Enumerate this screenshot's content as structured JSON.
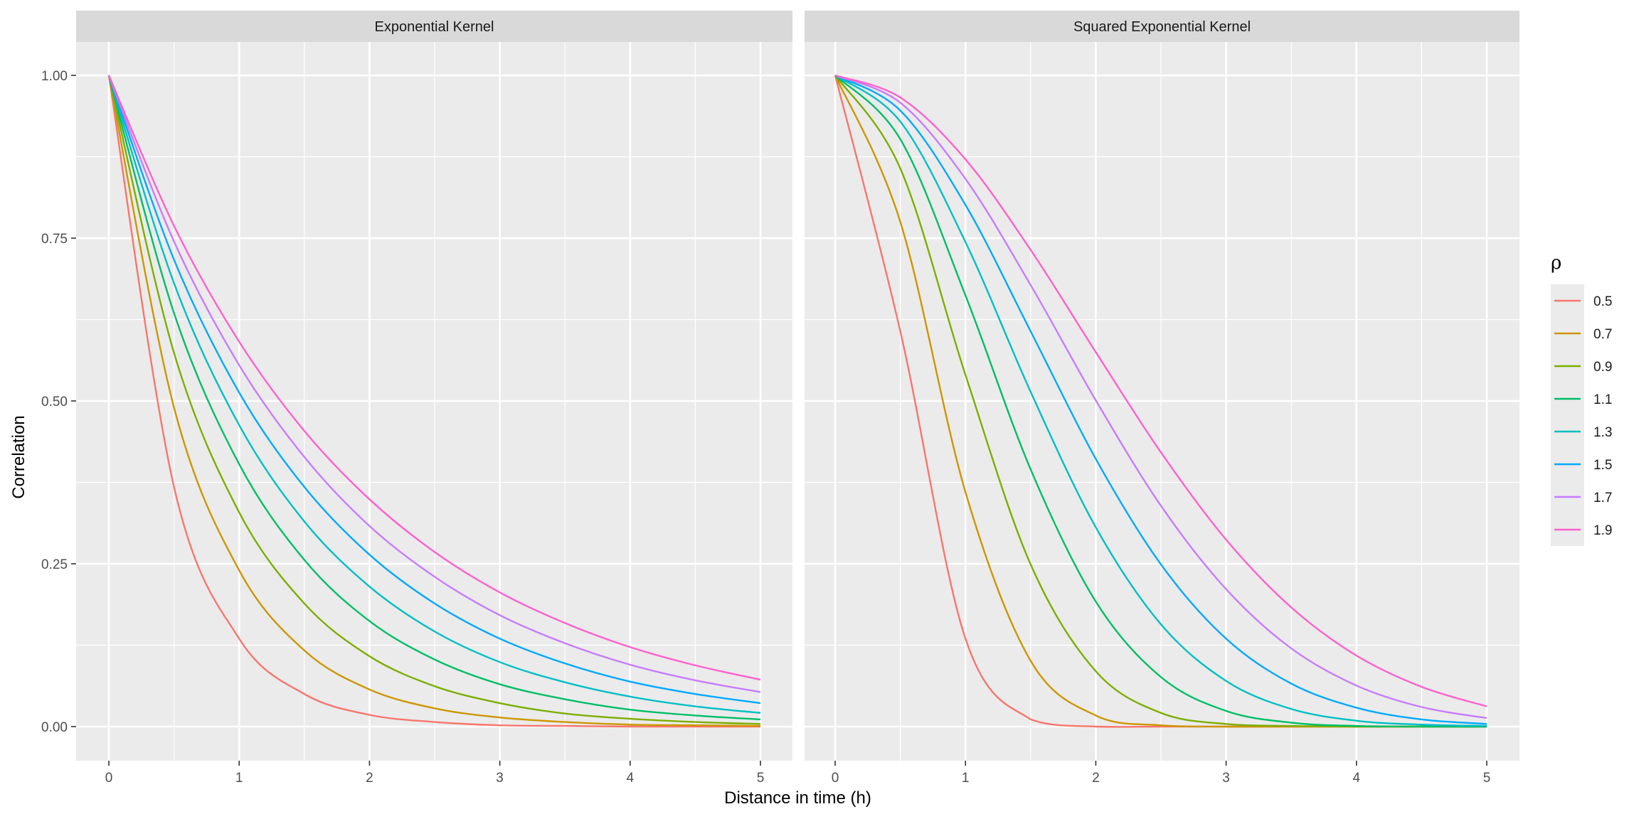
{
  "chart_data": {
    "type": "line",
    "xlabel": "Distance in time (h)",
    "ylabel": "Correlation",
    "xlim": [
      0,
      5
    ],
    "ylim": [
      0,
      1
    ],
    "x_ticks": [
      "0",
      "1",
      "2",
      "3",
      "4",
      "5"
    ],
    "y_ticks": [
      "0.00",
      "0.25",
      "0.50",
      "0.75",
      "1.00"
    ],
    "grid": true,
    "legend": {
      "title": "ρ",
      "placement": "right",
      "entries": [
        "0.5",
        "0.7",
        "0.9",
        "1.1",
        "1.3",
        "1.5",
        "1.7",
        "1.9"
      ],
      "colors": [
        "#F8766D",
        "#CD9600",
        "#7CAE00",
        "#00BE67",
        "#00BFC4",
        "#00A9FF",
        "#C77CFF",
        "#FF61CC"
      ]
    },
    "x": [
      0,
      0.5,
      1,
      1.5,
      2,
      2.5,
      3,
      3.5,
      4,
      4.5,
      5
    ],
    "panels": [
      {
        "title": "Exponential Kernel",
        "series": [
          {
            "name": "0.5",
            "values": [
              1,
              0.368,
              0.135,
              0.05,
              0.018,
              0.007,
              0.002,
              0.001,
              0.0,
              0.0,
              0.0
            ]
          },
          {
            "name": "0.7",
            "values": [
              1,
              0.49,
              0.24,
              0.117,
              0.057,
              0.028,
              0.014,
              0.007,
              0.003,
              0.002,
              0.001
            ]
          },
          {
            "name": "0.9",
            "values": [
              1,
              0.574,
              0.329,
              0.189,
              0.108,
              0.062,
              0.036,
              0.02,
              0.012,
              0.007,
              0.004
            ]
          },
          {
            "name": "1.1",
            "values": [
              1,
              0.635,
              0.403,
              0.256,
              0.162,
              0.103,
              0.065,
              0.042,
              0.026,
              0.017,
              0.011
            ]
          },
          {
            "name": "1.3",
            "values": [
              1,
              0.681,
              0.463,
              0.315,
              0.215,
              0.146,
              0.099,
              0.068,
              0.046,
              0.031,
              0.021
            ]
          },
          {
            "name": "1.5",
            "values": [
              1,
              0.717,
              0.513,
              0.368,
              0.264,
              0.189,
              0.135,
              0.097,
              0.069,
              0.05,
              0.036
            ]
          },
          {
            "name": "1.7",
            "values": [
              1,
              0.745,
              0.555,
              0.414,
              0.308,
              0.23,
              0.171,
              0.128,
              0.095,
              0.071,
              0.053
            ]
          },
          {
            "name": "1.9",
            "values": [
              1,
              0.769,
              0.591,
              0.454,
              0.349,
              0.268,
              0.206,
              0.159,
              0.122,
              0.094,
              0.072
            ]
          }
        ]
      },
      {
        "title": "Squared Exponential Kernel",
        "series": [
          {
            "name": "0.5",
            "values": [
              1,
              0.607,
              0.135,
              0.011,
              0.0,
              0.0,
              0.0,
              0.0,
              0.0,
              0.0,
              0.0
            ]
          },
          {
            "name": "0.7",
            "values": [
              1,
              0.775,
              0.36,
              0.101,
              0.017,
              0.002,
              0.0,
              0.0,
              0.0,
              0.0,
              0.0
            ]
          },
          {
            "name": "0.9",
            "values": [
              1,
              0.857,
              0.54,
              0.249,
              0.085,
              0.021,
              0.004,
              0.001,
              0.0,
              0.0,
              0.0
            ]
          },
          {
            "name": "1.1",
            "values": [
              1,
              0.902,
              0.662,
              0.395,
              0.192,
              0.076,
              0.024,
              0.006,
              0.001,
              0.0,
              0.0
            ]
          },
          {
            "name": "1.3",
            "values": [
              1,
              0.929,
              0.744,
              0.514,
              0.306,
              0.157,
              0.07,
              0.027,
              0.009,
              0.003,
              0.001
            ]
          },
          {
            "name": "1.5",
            "values": [
              1,
              0.946,
              0.801,
              0.607,
              0.411,
              0.249,
              0.135,
              0.066,
              0.029,
              0.011,
              0.004
            ]
          },
          {
            "name": "1.7",
            "values": [
              1,
              0.958,
              0.841,
              0.678,
              0.501,
              0.339,
              0.211,
              0.12,
              0.063,
              0.03,
              0.013
            ]
          },
          {
            "name": "1.9",
            "values": [
              1,
              0.966,
              0.871,
              0.732,
              0.575,
              0.421,
              0.287,
              0.183,
              0.109,
              0.061,
              0.031
            ]
          }
        ]
      }
    ]
  }
}
